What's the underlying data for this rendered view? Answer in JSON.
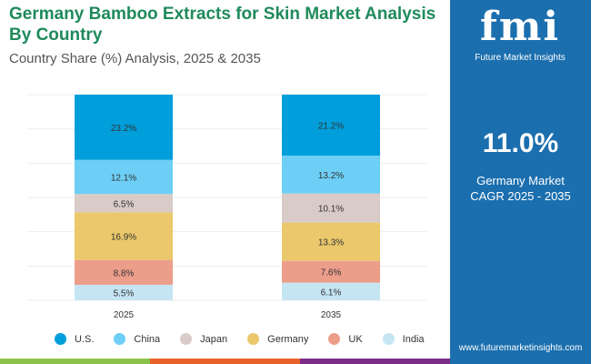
{
  "header": {
    "title": "Germany Bamboo Extracts for Skin Market Analysis By Country",
    "subtitle": "Country Share (%) Analysis, 2025 & 2035"
  },
  "panel": {
    "logo_text": "fmi",
    "logo_caption": "Future Market Insights",
    "cagr_value": "11.0%",
    "cagr_label_line1": "Germany Market",
    "cagr_label_line2": "CAGR 2025 - 2035",
    "url": "www.futuremarketinsights.com"
  },
  "colors": {
    "panel": "#1b6fae",
    "title": "#1f8a5b",
    "bottom_bar": [
      "#8bc34a",
      "#e8622c",
      "#7b2d87"
    ]
  },
  "chart_data": {
    "type": "stacked-bar",
    "categories": [
      "2025",
      "2035"
    ],
    "series": [
      {
        "name": "U.S.",
        "color": "#009fdb",
        "values": [
          23.2,
          21.2
        ]
      },
      {
        "name": "China",
        "color": "#6dcff6",
        "values": [
          12.1,
          13.2
        ]
      },
      {
        "name": "Japan",
        "color": "#d9cbc7",
        "values": [
          6.5,
          10.1
        ]
      },
      {
        "name": "Germany",
        "color": "#eac86b",
        "values": [
          16.9,
          13.3
        ]
      },
      {
        "name": "UK",
        "color": "#ec9e8a",
        "values": [
          8.8,
          7.6
        ]
      },
      {
        "name": "India",
        "color": "#c5e5f3",
        "values": [
          5.5,
          6.1
        ]
      }
    ],
    "value_format": "%",
    "legend": "bottom",
    "grid": true
  }
}
